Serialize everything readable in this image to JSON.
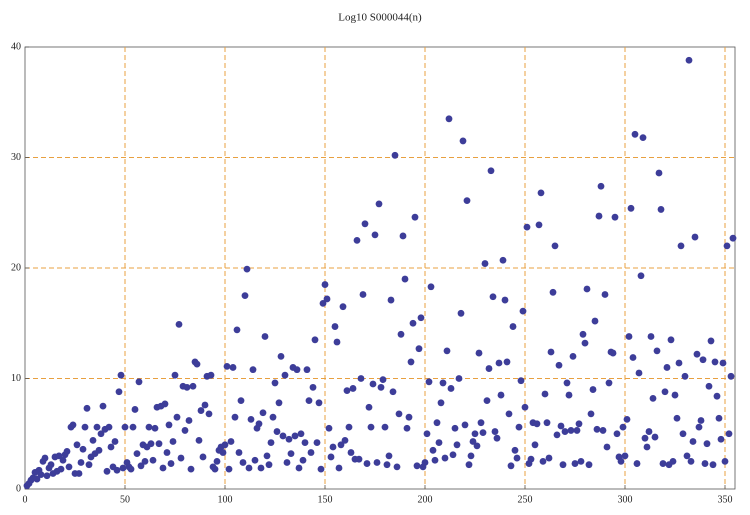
{
  "chart_data": {
    "type": "scatter",
    "title": "Log10 S000044(n)",
    "color": "#3d3d99",
    "grid": true,
    "xlim": [
      0,
      355
    ],
    "ylim": [
      0,
      40
    ],
    "xticks": [
      0,
      50,
      100,
      150,
      200,
      250,
      300,
      350
    ],
    "yticks": [
      0,
      10,
      20,
      30,
      40
    ],
    "x": [
      1,
      2,
      3,
      4,
      5,
      6,
      7,
      8,
      9,
      10,
      11,
      12,
      13,
      14,
      15,
      16,
      17,
      18,
      19,
      20,
      21,
      22,
      23,
      24,
      25,
      26,
      27,
      28,
      29,
      30,
      31,
      32,
      33,
      34,
      35,
      36,
      37,
      38,
      39,
      40,
      41,
      42,
      43,
      44,
      45,
      46,
      47,
      48,
      49,
      50,
      51,
      52,
      53,
      54,
      55,
      56,
      57,
      58,
      59,
      60,
      61,
      62,
      63,
      64,
      65,
      66,
      67,
      68,
      69,
      70,
      71,
      72,
      73,
      74,
      75,
      76,
      77,
      78,
      79,
      80,
      81,
      82,
      83,
      84,
      85,
      86,
      87,
      88,
      89,
      90,
      91,
      92,
      93,
      94,
      95,
      96,
      97,
      98,
      99,
      100,
      101,
      102,
      103,
      104,
      105,
      106,
      107,
      108,
      109,
      110,
      111,
      112,
      113,
      114,
      115,
      116,
      117,
      118,
      119,
      120,
      121,
      122,
      123,
      124,
      125,
      126,
      127,
      128,
      129,
      130,
      131,
      132,
      133,
      134,
      135,
      136,
      137,
      138,
      139,
      140,
      141,
      142,
      143,
      144,
      145,
      146,
      147,
      148,
      149,
      150,
      151,
      152,
      153,
      154,
      155,
      156,
      157,
      158,
      159,
      160,
      161,
      162,
      163,
      164,
      165,
      166,
      167,
      168,
      169,
      170,
      171,
      172,
      173,
      174,
      175,
      176,
      177,
      178,
      179,
      180,
      181,
      182,
      183,
      184,
      185,
      186,
      187,
      188,
      189,
      190,
      191,
      192,
      193,
      194,
      195,
      196,
      197,
      198,
      199,
      200,
      201,
      202,
      203,
      204,
      205,
      206,
      207,
      208,
      209,
      210,
      211,
      212,
      213,
      214,
      215,
      216,
      217,
      218,
      219,
      220,
      221,
      222,
      223,
      224,
      225,
      226,
      227,
      228,
      229,
      230,
      231,
      232,
      233,
      234,
      235,
      236,
      237,
      238,
      239,
      240,
      241,
      242,
      243,
      244,
      245,
      246,
      247,
      248,
      249,
      250,
      251,
      252,
      253,
      254,
      255,
      256,
      257,
      258,
      259,
      260,
      261,
      262,
      263,
      264,
      265,
      266,
      267,
      268,
      269,
      270,
      271,
      272,
      273,
      274,
      275,
      276,
      277,
      278,
      279,
      280,
      281,
      282,
      283,
      284,
      285,
      286,
      287,
      288,
      289,
      290,
      291,
      292,
      293,
      294,
      295,
      296,
      297,
      298,
      299,
      300,
      301,
      302,
      303,
      304,
      305,
      306,
      307,
      308,
      309,
      310,
      311,
      312,
      313,
      314,
      315,
      316,
      317,
      318,
      319,
      320,
      321,
      322,
      323,
      324,
      325,
      326,
      327,
      328,
      329,
      330,
      331,
      332,
      333,
      334,
      335,
      336,
      337,
      338,
      339,
      340,
      341,
      342,
      343,
      344,
      345,
      346,
      347,
      348,
      349,
      350,
      351,
      352,
      353,
      354
    ],
    "values": [
      0.3,
      0.5,
      0.8,
      1.0,
      1.5,
      0.9,
      1.7,
      1.3,
      2.5,
      2.8,
      1.2,
      1.9,
      2.2,
      1.4,
      2.9,
      1.6,
      3.0,
      1.8,
      2.6,
      3.1,
      3.4,
      2.0,
      5.6,
      5.8,
      1.4,
      4.0,
      1.4,
      2.4,
      3.6,
      5.6,
      7.3,
      2.2,
      2.9,
      4.4,
      3.2,
      5.6,
      3.5,
      5.0,
      7.5,
      5.4,
      1.6,
      5.6,
      3.8,
      2.0,
      4.3,
      1.7,
      8.8,
      10.3,
      1.9,
      5.6,
      2.4,
      2.0,
      1.8,
      5.6,
      7.2,
      3.2,
      9.7,
      2.1,
      4.0,
      2.5,
      3.8,
      5.6,
      4.1,
      2.6,
      5.5,
      7.4,
      4.1,
      7.5,
      1.9,
      7.7,
      3.3,
      5.8,
      2.3,
      4.3,
      10.3,
      6.5,
      14.9,
      2.8,
      9.3,
      5.3,
      9.2,
      6.2,
      1.8,
      9.3,
      11.5,
      11.3,
      4.4,
      7.1,
      2.9,
      7.6,
      10.2,
      6.8,
      10.3,
      2.0,
      1.8,
      2.5,
      3.5,
      3.8,
      3.3,
      4.0,
      11.1,
      1.8,
      4.3,
      11.0,
      6.5,
      14.4,
      3.3,
      8.0,
      2.4,
      17.5,
      19.9,
      1.9,
      6.3,
      10.8,
      2.6,
      5.5,
      5.9,
      1.9,
      6.9,
      13.8,
      3.0,
      2.2,
      4.2,
      6.5,
      9.6,
      5.2,
      7.8,
      12.0,
      4.8,
      10.3,
      2.4,
      4.5,
      3.2,
      11.0,
      4.8,
      10.8,
      1.9,
      5.0,
      2.6,
      4.2,
      10.8,
      8.0,
      3.3,
      9.2,
      13.5,
      4.2,
      7.8,
      1.8,
      16.8,
      18.5,
      17.2,
      5.5,
      2.9,
      3.8,
      14.7,
      13.3,
      1.9,
      4.0,
      16.5,
      4.4,
      8.9,
      5.6,
      3.3,
      9.1,
      2.7,
      22.5,
      2.7,
      10.0,
      17.6,
      24.0,
      2.3,
      7.4,
      5.6,
      9.5,
      23.0,
      2.4,
      25.8,
      9.2,
      9.9,
      5.6,
      2.2,
      3.0,
      17.1,
      8.8,
      30.2,
      2.0,
      6.8,
      14.0,
      22.9,
      19.0,
      5.5,
      6.5,
      11.5,
      15.0,
      24.6,
      2.1,
      12.7,
      15.5,
      2.0,
      2.4,
      5.0,
      9.7,
      18.3,
      3.5,
      2.6,
      6.0,
      4.2,
      7.8,
      9.6,
      2.8,
      12.5,
      33.5,
      9.1,
      3.1,
      5.5,
      4.0,
      10.0,
      15.9,
      31.5,
      5.8,
      26.1,
      2.2,
      3.0,
      4.3,
      5.0,
      3.9,
      12.3,
      6.0,
      5.1,
      20.4,
      8.0,
      10.9,
      28.8,
      17.4,
      5.2,
      4.6,
      11.4,
      8.5,
      20.7,
      17.1,
      11.5,
      6.8,
      2.1,
      14.7,
      3.5,
      2.8,
      5.6,
      9.8,
      16.1,
      7.4,
      23.7,
      2.3,
      2.7,
      6.0,
      4.0,
      5.9,
      23.9,
      26.8,
      2.5,
      8.6,
      6.0,
      2.8,
      12.4,
      17.8,
      22.0,
      4.9,
      11.2,
      5.7,
      2.2,
      5.2,
      9.6,
      8.5,
      5.3,
      12.0,
      2.3,
      5.3,
      5.9,
      2.5,
      14.0,
      13.2,
      18.1,
      2.2,
      6.8,
      9.0,
      15.2,
      5.4,
      24.7,
      27.4,
      5.3,
      17.6,
      3.8,
      9.6,
      12.4,
      12.3,
      24.6,
      5.0,
      2.9,
      2.5,
      5.6,
      3.0,
      6.3,
      13.8,
      25.4,
      11.9,
      32.1,
      2.3,
      10.5,
      19.3,
      31.8,
      4.6,
      3.8,
      5.2,
      13.8,
      8.2,
      4.7,
      12.5,
      28.6,
      25.3,
      2.3,
      8.8,
      11.0,
      2.2,
      13.5,
      2.5,
      8.5,
      6.4,
      11.4,
      22.0,
      5.0,
      10.2,
      3.0,
      38.8,
      2.5,
      4.3,
      22.8,
      12.2,
      5.6,
      6.2,
      11.7,
      2.3,
      4.1,
      9.3,
      13.4,
      2.2,
      11.5,
      8.4,
      6.4,
      4.5,
      11.4,
      2.5,
      22.0,
      5.0,
      10.2,
      22.7
    ]
  }
}
